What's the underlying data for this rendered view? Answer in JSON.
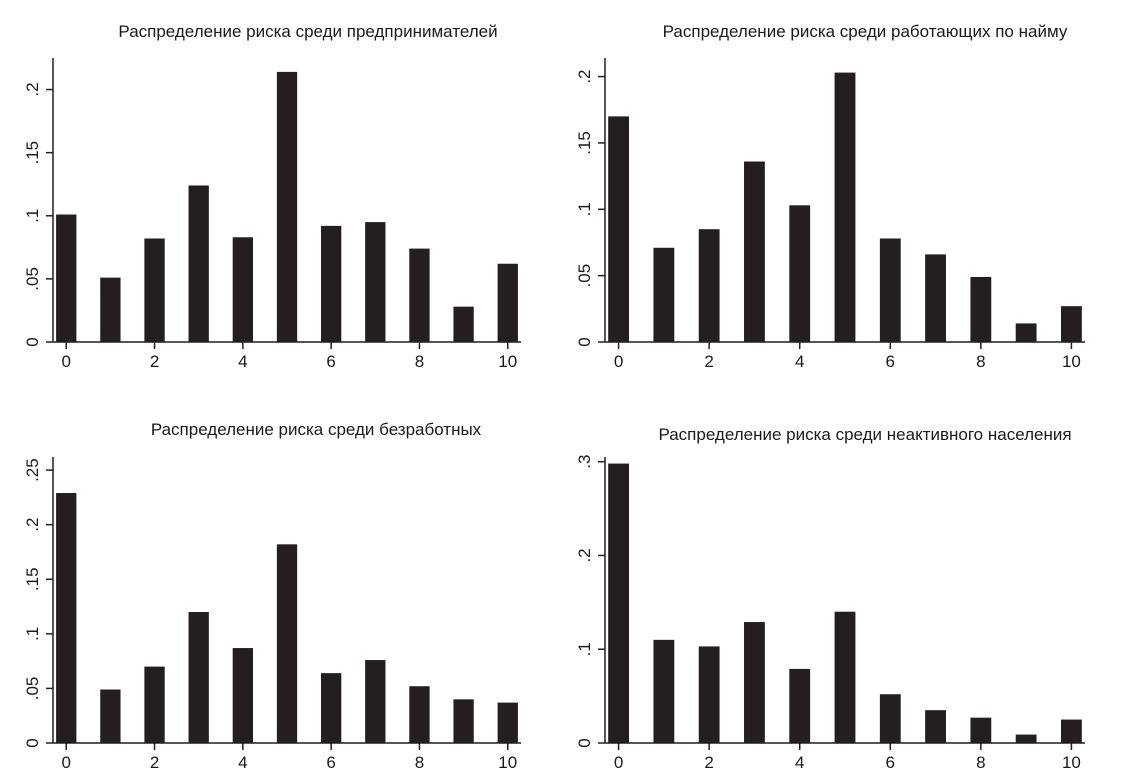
{
  "chart_data": [
    {
      "type": "bar",
      "title": "Распределение риска среди предпринимателей",
      "xlabel": "",
      "ylabel": "",
      "x": [
        0,
        1,
        2,
        3,
        4,
        5,
        6,
        7,
        8,
        9,
        10
      ],
      "values": [
        0.101,
        0.051,
        0.082,
        0.124,
        0.083,
        0.214,
        0.092,
        0.095,
        0.074,
        0.028,
        0.062
      ],
      "xlim": [
        -0.3,
        10.3
      ],
      "ylim": [
        0,
        0.225
      ],
      "xticks": [
        0,
        2,
        4,
        6,
        8,
        10
      ],
      "xtick_labels": [
        "0",
        "2",
        "4",
        "6",
        "8",
        "10"
      ],
      "yticks": [
        0,
        0.05,
        0.1,
        0.15,
        0.2
      ],
      "ytick_labels": [
        "0",
        ".05",
        ".1",
        ".15",
        ".2"
      ],
      "grid": false,
      "bar_color": "#231f20"
    },
    {
      "type": "bar",
      "title": "Распределение риска среди работающих по найму",
      "xlabel": "",
      "ylabel": "",
      "x": [
        0,
        1,
        2,
        3,
        4,
        5,
        6,
        7,
        8,
        9,
        10
      ],
      "values": [
        0.17,
        0.071,
        0.085,
        0.136,
        0.103,
        0.203,
        0.078,
        0.066,
        0.049,
        0.014,
        0.027
      ],
      "xlim": [
        -0.3,
        10.3
      ],
      "ylim": [
        0,
        0.214
      ],
      "xticks": [
        0,
        2,
        4,
        6,
        8,
        10
      ],
      "xtick_labels": [
        "0",
        "2",
        "4",
        "6",
        "8",
        "10"
      ],
      "yticks": [
        0,
        0.05,
        0.1,
        0.15,
        0.2
      ],
      "ytick_labels": [
        "0",
        ".05",
        ".1",
        ".15",
        ".2"
      ],
      "grid": false,
      "bar_color": "#231f20"
    },
    {
      "type": "bar",
      "title": "Распределение риска среди безработных",
      "xlabel": "",
      "ylabel": "",
      "x": [
        0,
        1,
        2,
        3,
        4,
        5,
        6,
        7,
        8,
        9,
        10
      ],
      "values": [
        0.229,
        0.049,
        0.07,
        0.12,
        0.087,
        0.182,
        0.064,
        0.076,
        0.052,
        0.04,
        0.037
      ],
      "xlim": [
        -0.3,
        10.3
      ],
      "ylim": [
        0,
        0.262
      ],
      "xticks": [
        0,
        2,
        4,
        6,
        8,
        10
      ],
      "xtick_labels": [
        "0",
        "2",
        "4",
        "6",
        "8",
        "10"
      ],
      "yticks": [
        0,
        0.05,
        0.1,
        0.15,
        0.2,
        0.25
      ],
      "ytick_labels": [
        "0",
        ".05",
        ".1",
        ".15",
        ".2",
        ".25"
      ],
      "grid": false,
      "bar_color": "#231f20"
    },
    {
      "type": "bar",
      "title": "Распределение риска среди неактивного населения",
      "xlabel": "",
      "ylabel": "",
      "x": [
        0,
        1,
        2,
        3,
        4,
        5,
        6,
        7,
        8,
        9,
        10
      ],
      "values": [
        0.298,
        0.11,
        0.103,
        0.129,
        0.079,
        0.14,
        0.052,
        0.035,
        0.027,
        0.009,
        0.025
      ],
      "xlim": [
        -0.3,
        10.3
      ],
      "ylim": [
        0,
        0.305
      ],
      "xticks": [
        0,
        2,
        4,
        6,
        8,
        10
      ],
      "xtick_labels": [
        "0",
        "2",
        "4",
        "6",
        "8",
        "10"
      ],
      "yticks": [
        0,
        0.1,
        0.2,
        0.3
      ],
      "ytick_labels": [
        "0",
        ".1",
        ".2",
        ".3"
      ],
      "grid": false,
      "bar_color": "#231f20"
    }
  ]
}
